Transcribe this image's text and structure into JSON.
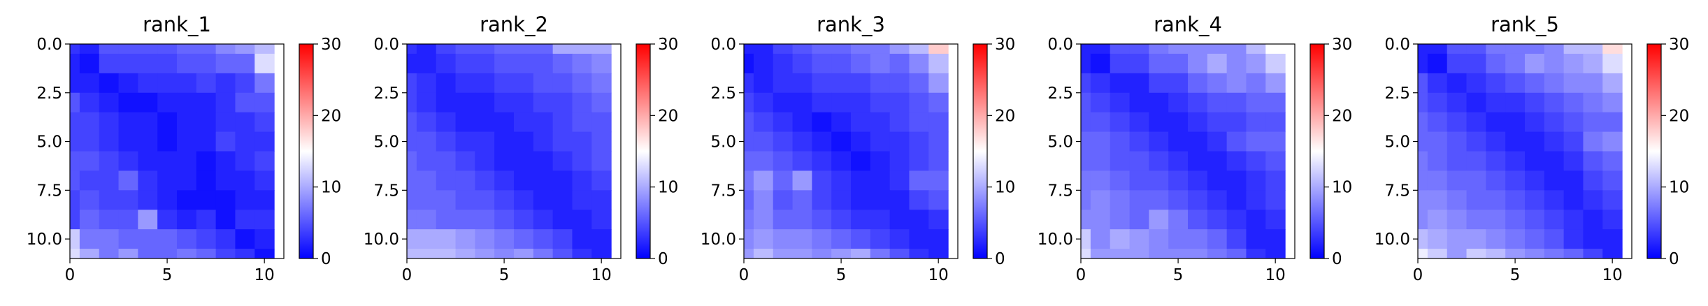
{
  "chart_data": [
    {
      "type": "heatmap",
      "title": "rank_1",
      "xticks": [
        "0",
        "5",
        "10"
      ],
      "yticks": [
        "0.0",
        "2.5",
        "5.0",
        "7.5",
        "10.0"
      ],
      "x_range": [
        0,
        11
      ],
      "y_range": [
        0,
        11
      ],
      "colormap": "bwr",
      "color_range": [
        0,
        30
      ],
      "colorbar_ticks": [
        "0",
        "10",
        "20",
        "30"
      ],
      "values": [
        [
          3,
          2,
          5,
          5,
          5,
          5,
          6,
          6,
          8,
          9,
          11
        ],
        [
          2,
          1,
          4,
          4,
          4,
          4,
          5,
          5,
          6,
          6,
          13
        ],
        [
          2,
          2,
          1,
          2,
          3,
          3,
          3,
          4,
          3,
          4,
          7
        ],
        [
          5,
          3,
          2,
          1,
          1,
          2,
          2,
          2,
          3,
          5,
          5
        ],
        [
          4,
          4,
          3,
          2,
          2,
          1,
          2,
          2,
          3,
          3,
          4
        ],
        [
          4,
          4,
          3,
          2,
          2,
          1,
          2,
          2,
          4,
          3,
          3
        ],
        [
          5,
          5,
          4,
          3,
          2,
          2,
          2,
          1,
          2,
          3,
          4
        ],
        [
          5,
          4,
          4,
          6,
          3,
          2,
          2,
          1,
          2,
          2,
          3
        ],
        [
          4,
          5,
          4,
          4,
          3,
          2,
          1,
          1,
          1,
          2,
          2
        ],
        [
          4,
          6,
          5,
          5,
          9,
          3,
          2,
          3,
          1,
          3,
          3
        ],
        [
          12,
          7,
          7,
          6,
          6,
          6,
          5,
          4,
          3,
          1,
          2
        ],
        [
          13,
          10,
          7,
          9,
          6,
          6,
          7,
          6,
          4,
          3,
          1
        ]
      ]
    },
    {
      "type": "heatmap",
      "title": "rank_2",
      "xticks": [
        "0",
        "5",
        "10"
      ],
      "yticks": [
        "0.0",
        "2.5",
        "5.0",
        "7.5",
        "10.0"
      ],
      "x_range": [
        0,
        11
      ],
      "y_range": [
        0,
        11
      ],
      "colormap": "bwr",
      "color_range": [
        0,
        30
      ],
      "colorbar_ticks": [
        "0",
        "10",
        "20",
        "30"
      ],
      "values": [
        [
          3,
          2,
          4,
          5,
          5,
          6,
          6,
          6,
          10,
          10,
          10
        ],
        [
          2,
          2,
          3,
          4,
          4,
          5,
          5,
          5,
          6,
          7,
          8
        ],
        [
          4,
          3,
          2,
          3,
          3,
          4,
          4,
          5,
          5,
          6,
          7
        ],
        [
          4,
          3,
          2,
          2,
          2,
          3,
          3,
          4,
          4,
          5,
          6
        ],
        [
          5,
          4,
          3,
          2,
          2,
          2,
          3,
          3,
          4,
          5,
          5
        ],
        [
          5,
          5,
          4,
          3,
          3,
          2,
          2,
          3,
          4,
          4,
          5
        ],
        [
          6,
          5,
          5,
          4,
          3,
          2,
          2,
          2,
          3,
          4,
          5
        ],
        [
          6,
          6,
          5,
          5,
          4,
          3,
          2,
          2,
          2,
          3,
          4
        ],
        [
          6,
          6,
          6,
          5,
          5,
          4,
          3,
          2,
          2,
          3,
          3
        ],
        [
          7,
          7,
          6,
          6,
          6,
          5,
          4,
          3,
          2,
          2,
          3
        ],
        [
          10,
          10,
          10,
          9,
          8,
          7,
          6,
          5,
          4,
          2,
          2
        ],
        [
          11,
          11,
          11,
          10,
          9,
          8,
          9,
          7,
          5,
          3,
          2
        ]
      ]
    },
    {
      "type": "heatmap",
      "title": "rank_3",
      "xticks": [
        "0",
        "5",
        "10"
      ],
      "yticks": [
        "0.0",
        "2.5",
        "5.0",
        "7.5",
        "10.0"
      ],
      "x_range": [
        0,
        11
      ],
      "y_range": [
        0,
        11
      ],
      "colormap": "bwr",
      "color_range": [
        0,
        30
      ],
      "colorbar_ticks": [
        "0",
        "10",
        "20",
        "30"
      ],
      "values": [
        [
          2,
          2,
          4,
          5,
          6,
          6,
          7,
          7,
          9,
          11,
          18
        ],
        [
          1,
          2,
          3,
          4,
          5,
          5,
          6,
          7,
          6,
          8,
          11
        ],
        [
          3,
          2,
          3,
          3,
          4,
          4,
          4,
          5,
          5,
          6,
          9
        ],
        [
          4,
          3,
          2,
          2,
          3,
          3,
          3,
          4,
          4,
          5,
          6
        ],
        [
          5,
          4,
          3,
          2,
          1,
          2,
          3,
          3,
          4,
          5,
          5
        ],
        [
          5,
          5,
          4,
          3,
          2,
          1,
          2,
          3,
          3,
          4,
          5
        ],
        [
          6,
          6,
          5,
          4,
          3,
          2,
          1,
          2,
          3,
          4,
          5
        ],
        [
          7,
          9,
          6,
          9,
          4,
          3,
          2,
          2,
          3,
          6,
          6
        ],
        [
          6,
          8,
          5,
          6,
          4,
          3,
          2,
          2,
          2,
          4,
          5
        ],
        [
          7,
          8,
          6,
          6,
          5,
          4,
          3,
          3,
          2,
          2,
          3
        ],
        [
          8,
          9,
          8,
          8,
          7,
          6,
          5,
          4,
          3,
          2,
          2
        ],
        [
          9,
          11,
          9,
          9,
          8,
          9,
          10,
          7,
          5,
          3,
          2
        ]
      ]
    },
    {
      "type": "heatmap",
      "title": "rank_4",
      "xticks": [
        "0",
        "5",
        "10"
      ],
      "yticks": [
        "0.0",
        "2.5",
        "5.0",
        "7.5",
        "10.0"
      ],
      "x_range": [
        0,
        11
      ],
      "y_range": [
        0,
        11
      ],
      "colormap": "bwr",
      "color_range": [
        0,
        30
      ],
      "colorbar_ticks": [
        "0",
        "10",
        "20",
        "30"
      ],
      "values": [
        [
          2,
          2,
          5,
          5,
          7,
          8,
          8,
          8,
          8,
          11,
          15
        ],
        [
          2,
          1,
          4,
          4,
          6,
          6,
          8,
          10,
          8,
          9,
          12
        ],
        [
          4,
          3,
          2,
          2,
          4,
          4,
          6,
          7,
          8,
          7,
          9
        ],
        [
          5,
          4,
          3,
          2,
          2,
          3,
          4,
          5,
          5,
          6,
          6
        ],
        [
          5,
          5,
          4,
          3,
          2,
          2,
          3,
          4,
          4,
          5,
          5
        ],
        [
          6,
          6,
          5,
          4,
          3,
          2,
          2,
          3,
          5,
          6,
          6
        ],
        [
          6,
          6,
          5,
          5,
          4,
          3,
          2,
          2,
          3,
          4,
          5
        ],
        [
          7,
          7,
          6,
          5,
          5,
          4,
          3,
          2,
          2,
          3,
          4
        ],
        [
          7,
          8,
          7,
          6,
          6,
          5,
          4,
          3,
          2,
          3,
          4
        ],
        [
          8,
          8,
          7,
          6,
          9,
          7,
          5,
          4,
          3,
          2,
          3
        ],
        [
          12,
          8,
          10,
          9,
          8,
          7,
          7,
          6,
          4,
          2,
          2
        ],
        [
          13,
          9,
          9,
          9,
          8,
          8,
          8,
          7,
          6,
          3,
          2
        ]
      ]
    },
    {
      "type": "heatmap",
      "title": "rank_5",
      "xticks": [
        "0",
        "5",
        "10"
      ],
      "yticks": [
        "0.0",
        "2.5",
        "5.0",
        "7.5",
        "10.0"
      ],
      "x_range": [
        0,
        11
      ],
      "y_range": [
        0,
        11
      ],
      "colormap": "bwr",
      "color_range": [
        0,
        30
      ],
      "colorbar_ticks": [
        "0",
        "10",
        "20",
        "30"
      ],
      "values": [
        [
          2,
          2,
          5,
          5,
          7,
          7,
          7,
          8,
          11,
          11,
          17
        ],
        [
          2,
          1,
          4,
          4,
          6,
          7,
          9,
          8,
          9,
          10,
          13
        ],
        [
          5,
          3,
          2,
          3,
          4,
          5,
          6,
          7,
          8,
          8,
          10
        ],
        [
          5,
          4,
          3,
          2,
          3,
          3,
          4,
          5,
          6,
          7,
          8
        ],
        [
          6,
          5,
          4,
          3,
          2,
          2,
          3,
          4,
          5,
          6,
          6
        ],
        [
          6,
          6,
          5,
          4,
          3,
          2,
          2,
          3,
          4,
          7,
          8
        ],
        [
          7,
          6,
          5,
          5,
          4,
          3,
          2,
          2,
          3,
          5,
          6
        ],
        [
          7,
          7,
          6,
          6,
          5,
          4,
          3,
          2,
          2,
          4,
          5
        ],
        [
          8,
          8,
          7,
          6,
          6,
          5,
          4,
          3,
          2,
          3,
          4
        ],
        [
          8,
          9,
          8,
          7,
          7,
          6,
          5,
          4,
          3,
          2,
          3
        ],
        [
          11,
          10,
          9,
          9,
          8,
          7,
          6,
          5,
          3,
          2,
          2
        ],
        [
          14,
          12,
          9,
          12,
          11,
          9,
          8,
          7,
          6,
          4,
          2
        ]
      ]
    }
  ]
}
